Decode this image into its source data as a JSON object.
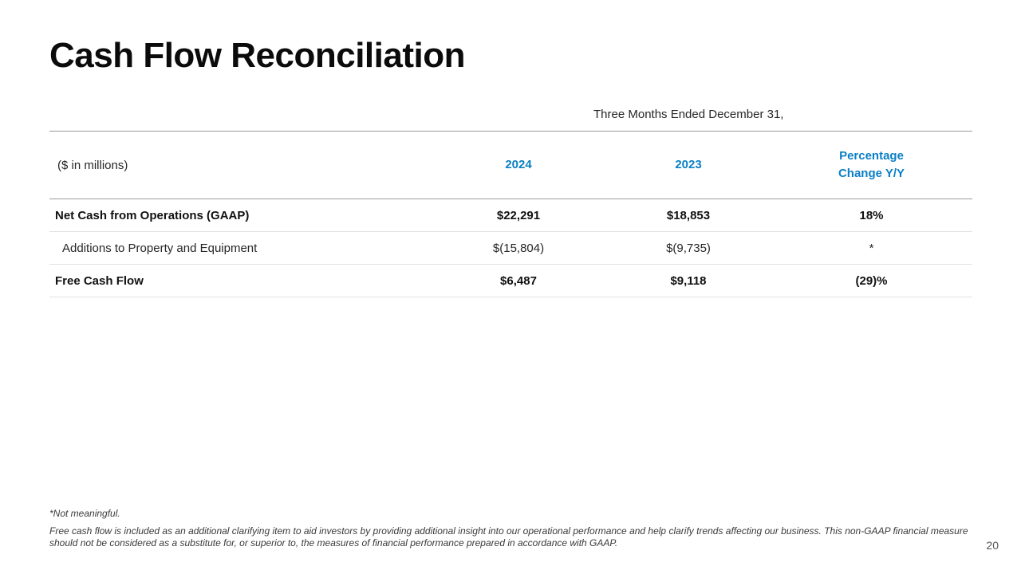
{
  "title": "Cash Flow Reconciliation",
  "table": {
    "period_header": "Three Months Ended December 31,",
    "units_label": "($ in millions)",
    "col_2024": "2024",
    "col_2023": "2023",
    "pct_line1": "Percentage",
    "pct_line2": "Change Y/Y",
    "rows": [
      {
        "label": "Net Cash from Operations (GAAP)",
        "v2024": "$22,291",
        "v2023": "$18,853",
        "pct": "18%"
      },
      {
        "label": "Additions to Property and Equipment",
        "v2024": "$(15,804)",
        "v2023": "$(9,735)",
        "pct": "*"
      },
      {
        "label": "Free Cash Flow",
        "v2024": "$6,487",
        "v2023": "$9,118",
        "pct": "(29)%"
      }
    ]
  },
  "footnotes": {
    "not_meaningful": "*Not meaningful.",
    "fcf_note": "Free cash flow is included as an additional clarifying item to aid investors by providing additional insight into our operational performance and help clarify trends affecting our business. This non-GAAP financial measure should not be considered as a substitute for, or superior to, the measures of financial performance prepared in accordance with GAAP."
  },
  "page_number": "20",
  "colors": {
    "accent_blue": "#0a7fc6",
    "rule_gray": "#9a9a9a"
  }
}
